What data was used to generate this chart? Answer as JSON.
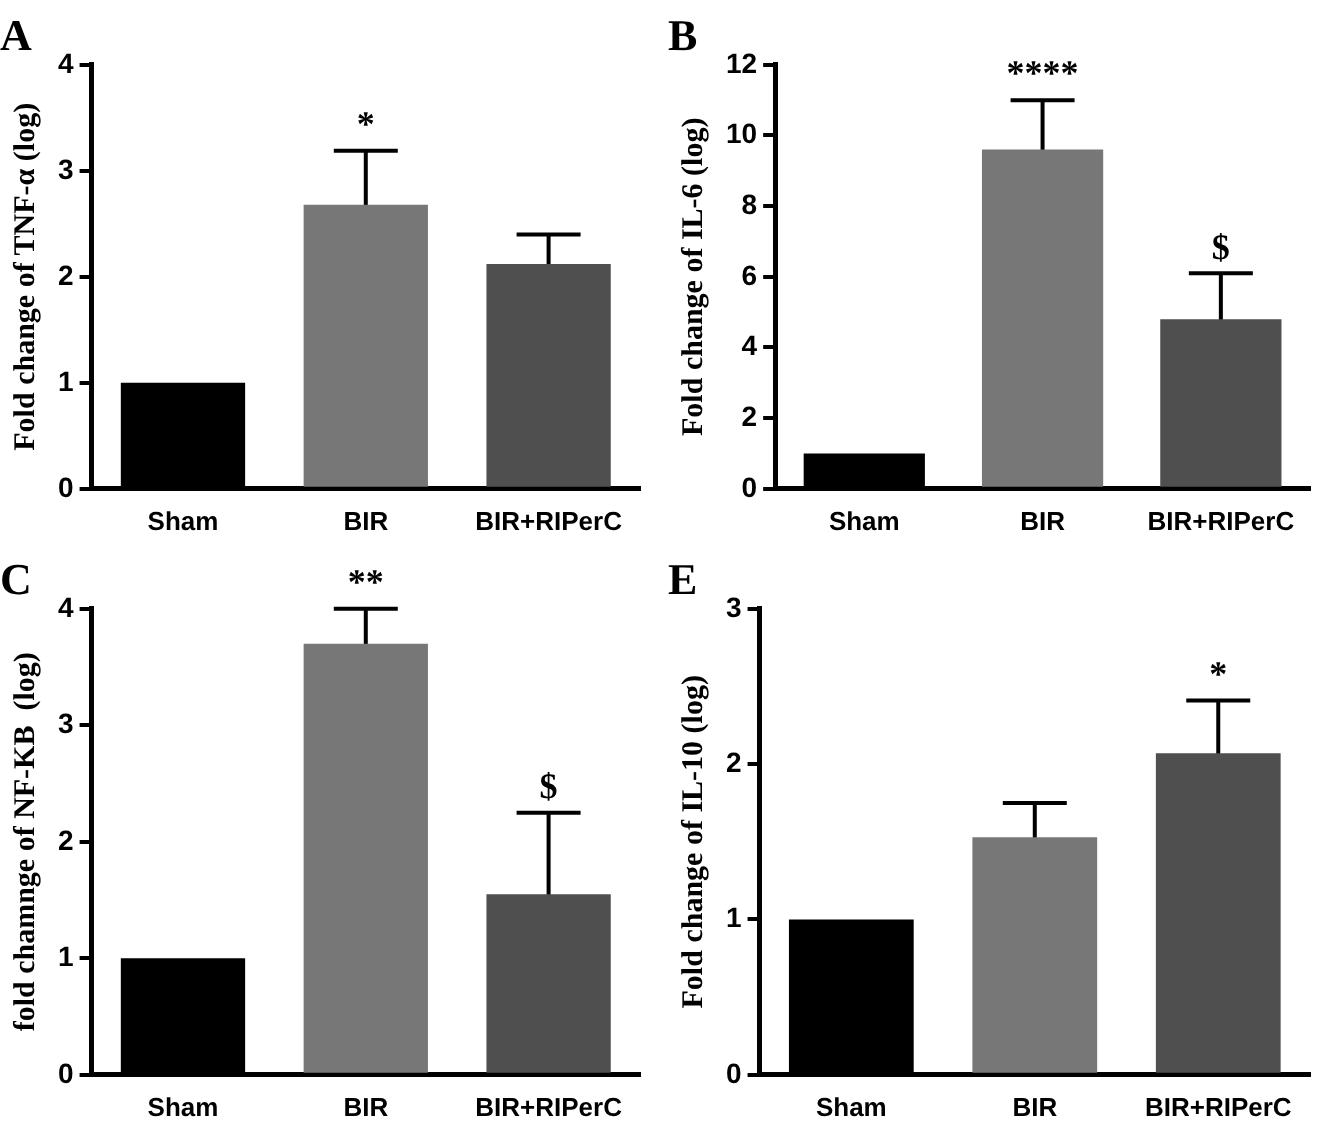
{
  "chart_data": [
    {
      "type": "bar",
      "title": "A",
      "ylabel": "Fold change of TNF-α (log)",
      "categories": [
        "Sham",
        "BIR",
        "BIR+RIPerC"
      ],
      "values": [
        1.0,
        2.68,
        2.12
      ],
      "errors": [
        null,
        0.51,
        0.28
      ],
      "colors": [
        "#000000",
        "#777777",
        "#4f4f4f"
      ],
      "ylim": [
        0,
        4
      ],
      "yticks": [
        0,
        1,
        2,
        3,
        4
      ],
      "grid": false,
      "legend": false,
      "annotations": [
        {
          "text": "*",
          "x": "BIR",
          "y": 3.19
        }
      ]
    },
    {
      "type": "bar",
      "title": "B",
      "ylabel": "Fold change of IL-6 (log)",
      "categories": [
        "Sham",
        "BIR",
        "BIR+RIPerC"
      ],
      "values": [
        1.0,
        9.6,
        4.8
      ],
      "errors": [
        null,
        1.4,
        1.3
      ],
      "colors": [
        "#000000",
        "#777777",
        "#4f4f4f"
      ],
      "ylim": [
        0,
        12
      ],
      "yticks": [
        0,
        2,
        4,
        6,
        8,
        10,
        12
      ],
      "grid": false,
      "legend": false,
      "annotations": [
        {
          "text": "****",
          "x": "BIR",
          "y": 11.0
        },
        {
          "text": "$",
          "x": "BIR+RIPerC",
          "y": 6.1
        }
      ]
    },
    {
      "type": "bar",
      "title": "C",
      "ylabel": "fold chamnge of NF-KB  (log)",
      "categories": [
        "Sham",
        "BIR",
        "BIR+RIPerC"
      ],
      "values": [
        1.0,
        3.7,
        1.55
      ],
      "errors": [
        null,
        0.3,
        0.7
      ],
      "colors": [
        "#000000",
        "#777777",
        "#4f4f4f"
      ],
      "ylim": [
        0,
        4
      ],
      "yticks": [
        0,
        1,
        2,
        3,
        4
      ],
      "grid": false,
      "legend": false,
      "annotations": [
        {
          "text": "**",
          "x": "BIR",
          "y": 4.0
        },
        {
          "text": "$",
          "x": "BIR+RIPerC",
          "y": 2.25
        }
      ]
    },
    {
      "type": "bar",
      "title": "E",
      "ylabel": "Fold change of IL-10 (log)",
      "categories": [
        "Sham",
        "BIR",
        "BIR+RIPerC"
      ],
      "values": [
        1.0,
        1.53,
        2.07
      ],
      "errors": [
        null,
        0.22,
        0.34
      ],
      "colors": [
        "#000000",
        "#777777",
        "#4f4f4f"
      ],
      "ylim": [
        0,
        3
      ],
      "yticks": [
        0,
        1,
        2,
        3
      ],
      "grid": false,
      "legend": false,
      "annotations": [
        {
          "text": "*",
          "x": "BIR+RIPerC",
          "y": 2.41
        }
      ]
    }
  ]
}
